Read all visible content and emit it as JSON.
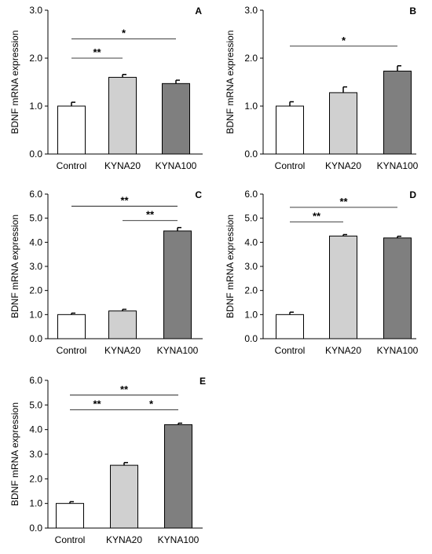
{
  "chart_data": [
    {
      "panel": "A",
      "type": "bar",
      "categories": [
        "Control",
        "KYNA20",
        "KYNA100"
      ],
      "values": [
        1.0,
        1.6,
        1.47
      ],
      "errors": [
        0.08,
        0.06,
        0.07
      ],
      "ylabel": "BDNF mRNA expression",
      "ylim": [
        0,
        3
      ],
      "yticks": [
        "0.0",
        "1.0",
        "2.0",
        "3.0"
      ],
      "bar_colors": [
        "#ffffff",
        "#d0d0d0",
        "#7f7f7f"
      ],
      "significance": [
        {
          "from": 0,
          "to": 1,
          "label": "**",
          "y": 2.0
        },
        {
          "from": 0,
          "to": 2,
          "label": "*",
          "y": 2.4
        }
      ]
    },
    {
      "panel": "B",
      "type": "bar",
      "categories": [
        "Control",
        "KYNA20",
        "KYNA100"
      ],
      "values": [
        1.0,
        1.28,
        1.73
      ],
      "errors": [
        0.09,
        0.12,
        0.11
      ],
      "ylabel": "BDNF mRNA expression",
      "ylim": [
        0,
        3
      ],
      "yticks": [
        "0.0",
        "1.0",
        "2.0",
        "3.0"
      ],
      "bar_colors": [
        "#ffffff",
        "#d0d0d0",
        "#7f7f7f"
      ],
      "significance": [
        {
          "from": 0,
          "to": 2,
          "label": "*",
          "y": 2.25
        }
      ]
    },
    {
      "panel": "C",
      "type": "bar",
      "categories": [
        "Control",
        "KYNA20",
        "KYNA100"
      ],
      "values": [
        1.0,
        1.15,
        4.47
      ],
      "errors": [
        0.06,
        0.07,
        0.14
      ],
      "ylabel": "BDNF mRNA expression",
      "ylim": [
        0,
        6
      ],
      "yticks": [
        "0.0",
        "1.0",
        "2.0",
        "3.0",
        "4.0",
        "5.0",
        "6.0"
      ],
      "bar_colors": [
        "#ffffff",
        "#d0d0d0",
        "#7f7f7f"
      ],
      "significance": [
        {
          "from": 0,
          "to": 2,
          "label": "**",
          "y": 5.5
        },
        {
          "from": 1,
          "to": 2,
          "label": "**",
          "y": 4.9
        }
      ]
    },
    {
      "panel": "D",
      "type": "bar",
      "categories": [
        "Control",
        "KYNA20",
        "KYNA100"
      ],
      "values": [
        1.0,
        4.26,
        4.18
      ],
      "errors": [
        0.1,
        0.06,
        0.07
      ],
      "ylabel": "BDNF mRNA expression",
      "ylim": [
        0,
        6
      ],
      "yticks": [
        "0.0",
        "1.0",
        "2.0",
        "3.0",
        "4.0",
        "5.0",
        "6.0"
      ],
      "bar_colors": [
        "#ffffff",
        "#d0d0d0",
        "#7f7f7f"
      ],
      "significance": [
        {
          "from": 0,
          "to": 1,
          "label": "**",
          "y": 4.85
        },
        {
          "from": 0,
          "to": 2,
          "label": "**",
          "y": 5.45
        }
      ]
    },
    {
      "panel": "E",
      "type": "bar",
      "categories": [
        "Control",
        "KYNA20",
        "KYNA100"
      ],
      "values": [
        1.0,
        2.55,
        4.2
      ],
      "errors": [
        0.07,
        0.11,
        0.06
      ],
      "ylabel": "BDNF mRNA expression",
      "ylim": [
        0,
        6
      ],
      "yticks": [
        "0.0",
        "1.0",
        "2.0",
        "3.0",
        "4.0",
        "5.0",
        "6.0"
      ],
      "bar_colors": [
        "#ffffff",
        "#d0d0d0",
        "#7f7f7f"
      ],
      "significance": [
        {
          "from": 0,
          "to": 2,
          "label": "**",
          "y": 5.4
        },
        {
          "from": 0,
          "to": 1,
          "label": "**",
          "y": 4.8
        },
        {
          "from": 1,
          "to": 2,
          "label": "*",
          "y": 4.8
        }
      ]
    }
  ]
}
